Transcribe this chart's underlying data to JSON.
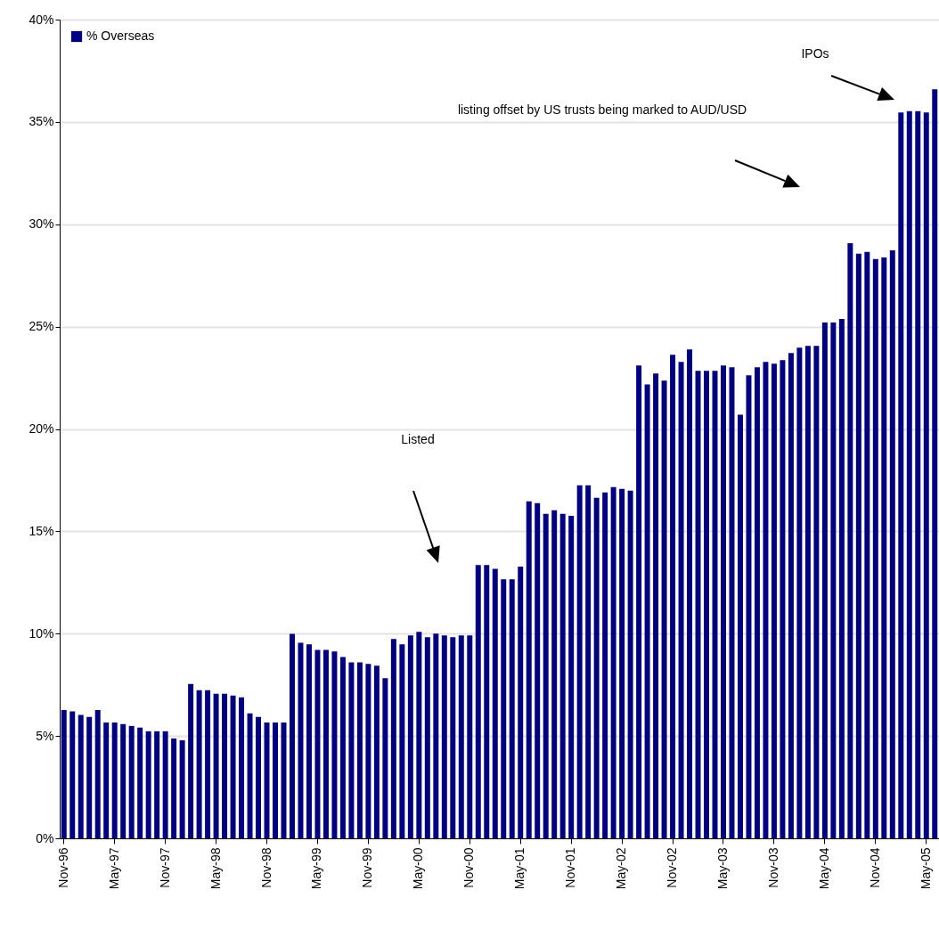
{
  "chart_data": {
    "type": "bar",
    "categories": [
      "Nov-96",
      null,
      null,
      null,
      null,
      null,
      "May-97",
      null,
      null,
      null,
      null,
      null,
      "Nov-97",
      null,
      null,
      null,
      null,
      null,
      "May-98",
      null,
      null,
      null,
      null,
      null,
      "Nov-98",
      null,
      null,
      null,
      null,
      null,
      "May-99",
      null,
      null,
      null,
      null,
      null,
      "Nov-99",
      null,
      null,
      null,
      null,
      null,
      "May-00",
      null,
      null,
      null,
      null,
      null,
      "Nov-00",
      null,
      null,
      null,
      null,
      null,
      "May-01",
      null,
      null,
      null,
      null,
      null,
      "Nov-01",
      null,
      null,
      null,
      null,
      null,
      "May-02",
      null,
      null,
      null,
      null,
      null,
      "Nov-02",
      null,
      null,
      null,
      null,
      null,
      "May-03",
      null,
      null,
      null,
      null,
      null,
      "Nov-03",
      null,
      null,
      null,
      null,
      null,
      "May-04",
      null,
      null,
      null,
      null,
      null,
      "Nov-04",
      null,
      null,
      null,
      null,
      null,
      "May-05",
      null
    ],
    "series": [
      {
        "name": "% Overseas",
        "color": "#000080",
        "values": [
          6.27,
          6.2,
          6.03,
          5.93,
          6.27,
          5.66,
          5.66,
          5.58,
          5.49,
          5.41,
          5.23,
          5.23,
          5.23,
          4.88,
          4.79,
          7.54,
          7.24,
          7.24,
          7.06,
          7.06,
          6.97,
          6.89,
          6.1,
          5.93,
          5.66,
          5.66,
          5.66,
          9.99,
          9.55,
          9.48,
          9.21,
          9.21,
          9.13,
          8.86,
          8.6,
          8.6,
          8.52,
          8.43,
          7.82,
          9.74,
          9.48,
          9.91,
          10.09,
          9.83,
          10.0,
          9.91,
          9.83,
          9.91,
          9.91,
          13.35,
          13.35,
          13.17,
          12.66,
          12.66,
          13.27,
          16.46,
          16.38,
          15.85,
          16.03,
          15.85,
          15.76,
          17.25,
          17.25,
          16.64,
          16.9,
          17.16,
          17.07,
          16.99,
          23.1,
          22.18,
          22.71,
          22.36,
          23.62,
          23.28,
          23.88,
          22.84,
          22.84,
          22.84,
          23.1,
          23.01,
          20.7,
          22.62,
          23.01,
          23.28,
          23.19,
          23.36,
          23.71,
          23.97,
          24.06,
          24.06,
          25.2,
          25.2,
          25.37,
          29.08,
          28.56,
          28.65,
          28.3,
          28.38,
          28.73,
          35.46,
          35.53,
          35.53,
          35.46,
          36.59
        ]
      }
    ],
    "ylim": [
      0,
      40
    ],
    "yticks": [
      {
        "value": 0,
        "label": "0%"
      },
      {
        "value": 5,
        "label": "5%"
      },
      {
        "value": 10,
        "label": "10%"
      },
      {
        "value": 15,
        "label": "15%"
      },
      {
        "value": 20,
        "label": "20%"
      },
      {
        "value": 25,
        "label": "25%"
      },
      {
        "value": 30,
        "label": "30%"
      },
      {
        "value": 35,
        "label": "35%"
      },
      {
        "value": 40,
        "label": "40%"
      }
    ],
    "grid": "y",
    "legend": "top left",
    "annotations": [
      "Listed",
      "listing offset by US trusts being marked to AUD/USD",
      "IPOs"
    ]
  }
}
